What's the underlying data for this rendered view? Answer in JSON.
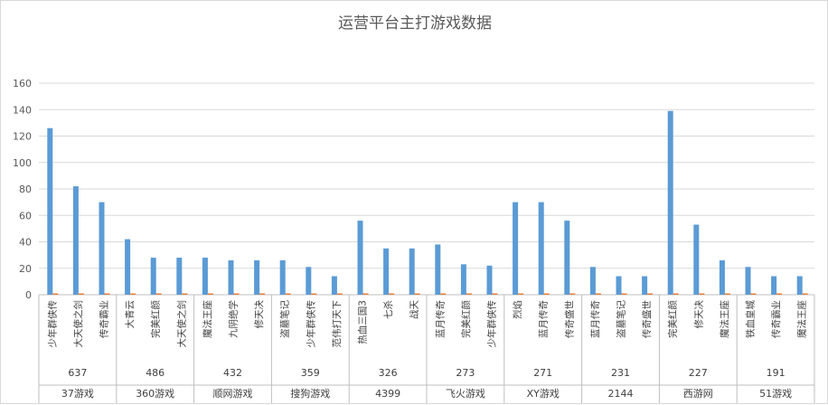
{
  "chart_data": {
    "type": "bar",
    "title": "运营平台主打游戏数据",
    "ylim": [
      0,
      160
    ],
    "yticks": [
      0,
      20,
      40,
      60,
      80,
      100,
      120,
      140,
      160
    ],
    "grid": true,
    "colors": {
      "primary": "#5b9bd5",
      "secondary": "#ed7d31"
    },
    "groups": [
      {
        "platform": "37游戏",
        "total": "637",
        "games": [
          "少年群侠传",
          "大天使之剑",
          "传奇霸业"
        ],
        "values": [
          126,
          82,
          70
        ],
        "second": [
          1,
          1,
          1
        ]
      },
      {
        "platform": "360游戏",
        "total": "486",
        "games": [
          "大青云",
          "完美红颜",
          "大天使之剑"
        ],
        "values": [
          42,
          28,
          28
        ],
        "second": [
          1,
          1,
          1
        ]
      },
      {
        "platform": "顺网游戏",
        "total": "432",
        "games": [
          "魔法王座",
          "九阴绝学",
          "修天决"
        ],
        "values": [
          28,
          26,
          26
        ],
        "second": [
          1,
          1,
          1
        ]
      },
      {
        "platform": "搜狗游戏",
        "total": "359",
        "games": [
          "盗墓笔记",
          "少年群侠传",
          "范伟打天下"
        ],
        "values": [
          26,
          21,
          14
        ],
        "second": [
          1,
          1,
          1
        ]
      },
      {
        "platform": "4399",
        "total": "326",
        "games": [
          "热血三国3",
          "七杀",
          "战天"
        ],
        "values": [
          56,
          35,
          35
        ],
        "second": [
          1,
          1,
          1
        ]
      },
      {
        "platform": "飞火游戏",
        "total": "273",
        "games": [
          "蓝月传奇",
          "完美红颜",
          "少年群侠传"
        ],
        "values": [
          38,
          23,
          22
        ],
        "second": [
          1,
          1,
          1
        ]
      },
      {
        "platform": "XY游戏",
        "total": "271",
        "games": [
          "烈焰",
          "蓝月传奇",
          "传奇盛世"
        ],
        "values": [
          70,
          70,
          56
        ],
        "second": [
          1,
          1,
          1
        ]
      },
      {
        "platform": "2144",
        "total": "231",
        "games": [
          "蓝月传奇",
          "盗墓笔记",
          "传奇盛世"
        ],
        "values": [
          21,
          14,
          14
        ],
        "second": [
          1,
          1,
          1
        ]
      },
      {
        "platform": "西游网",
        "total": "227",
        "games": [
          "完美红颜",
          "修天决",
          "魔法王座"
        ],
        "values": [
          139,
          53,
          26
        ],
        "second": [
          1,
          1,
          1
        ]
      },
      {
        "platform": "51游戏",
        "total": "191",
        "games": [
          "铁血皇城",
          "传奇霸业",
          "魔法王座"
        ],
        "values": [
          21,
          14,
          14
        ],
        "second": [
          1,
          1,
          1
        ]
      }
    ]
  }
}
